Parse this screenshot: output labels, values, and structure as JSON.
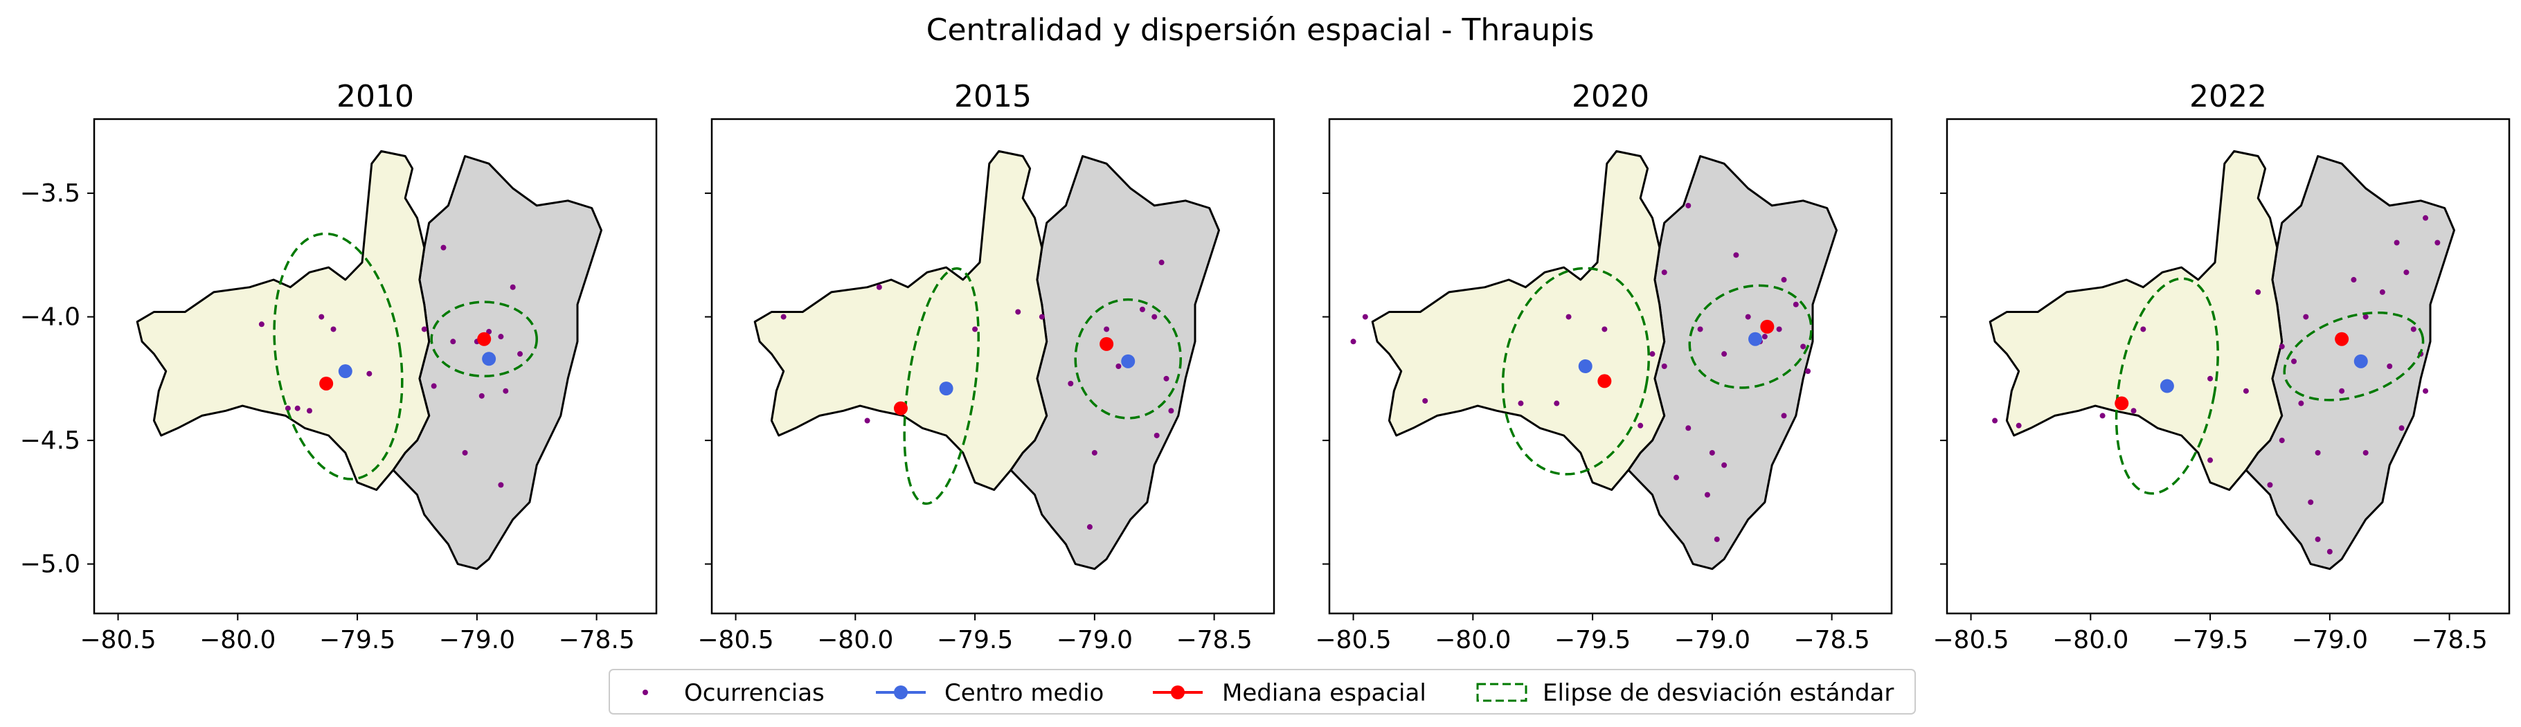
{
  "figure": {
    "suptitle": "Centralidad y dispersión espacial - Thraupis"
  },
  "legend": {
    "items": [
      {
        "key": "ocurrencias",
        "label": "Ocurrencias"
      },
      {
        "key": "centro",
        "label": "Centro medio"
      },
      {
        "key": "mediana",
        "label": "Mediana espacial"
      },
      {
        "key": "elipse",
        "label": "Elipse de desviación estándar"
      }
    ]
  },
  "colors": {
    "occurrence": "#800080",
    "mean_center": "#4169e1",
    "median": "#ff0000",
    "ellipse": "#007a00",
    "region_left": "#f5f5dc",
    "region_right": "#d3d3d3"
  },
  "chart_data": [
    {
      "type": "scatter",
      "title": "2010",
      "xlim": [
        -80.6,
        -78.25
      ],
      "ylim": [
        -5.2,
        -3.2
      ],
      "xticks": [
        -80.5,
        -80.0,
        -79.5,
        -79.0,
        -78.5
      ],
      "yticks": [
        -3.5,
        -4.0,
        -4.5,
        -5.0
      ],
      "mean_center": [
        -79.55,
        -4.22
      ],
      "median_center": [
        -79.63,
        -4.27
      ],
      "median_center_2": [
        -78.97,
        -4.09
      ],
      "mean_center_2": [
        -78.95,
        -4.17
      ],
      "ellipses": [
        {
          "center": [
            -79.58,
            -4.16
          ],
          "rx": 0.26,
          "ry": 0.5,
          "angle": -8
        },
        {
          "center": [
            -78.97,
            -4.09
          ],
          "rx": 0.22,
          "ry": 0.15,
          "angle": 0
        }
      ],
      "occurrences": [
        [
          -79.75,
          -4.37
        ],
        [
          -79.7,
          -4.38
        ],
        [
          -79.79,
          -4.37
        ],
        [
          -79.6,
          -4.05
        ],
        [
          -79.45,
          -4.23
        ],
        [
          -79.22,
          -4.05
        ],
        [
          -79.18,
          -4.28
        ],
        [
          -79.14,
          -3.72
        ],
        [
          -79.0,
          -4.1
        ],
        [
          -78.95,
          -4.06
        ],
        [
          -78.98,
          -4.32
        ],
        [
          -79.05,
          -4.55
        ],
        [
          -78.9,
          -4.08
        ],
        [
          -78.88,
          -4.3
        ],
        [
          -78.85,
          -3.88
        ],
        [
          -78.82,
          -4.15
        ],
        [
          -78.9,
          -4.68
        ],
        [
          -79.1,
          -4.1
        ],
        [
          -79.65,
          -4.0
        ],
        [
          -79.9,
          -4.03
        ]
      ]
    },
    {
      "type": "scatter",
      "title": "2015",
      "xlim": [
        -80.6,
        -78.25
      ],
      "ylim": [
        -5.2,
        -3.2
      ],
      "xticks": [
        -80.5,
        -80.0,
        -79.5,
        -79.0,
        -78.5
      ],
      "yticks": [
        -3.5,
        -4.0,
        -4.5,
        -5.0
      ],
      "mean_center": [
        -79.62,
        -4.29
      ],
      "median_center": [
        -79.81,
        -4.37
      ],
      "median_center_2": [
        -78.95,
        -4.11
      ],
      "mean_center_2": [
        -78.86,
        -4.18
      ],
      "ellipses": [
        {
          "center": [
            -79.64,
            -4.28
          ],
          "rx": 0.14,
          "ry": 0.48,
          "angle": 8
        },
        {
          "center": [
            -78.86,
            -4.17
          ],
          "rx": 0.22,
          "ry": 0.24,
          "angle": 0
        }
      ],
      "occurrences": [
        [
          -79.9,
          -3.88
        ],
        [
          -79.82,
          -4.36
        ],
        [
          -79.5,
          -4.05
        ],
        [
          -79.32,
          -3.98
        ],
        [
          -79.22,
          -4.0
        ],
        [
          -79.1,
          -4.27
        ],
        [
          -78.95,
          -4.05
        ],
        [
          -78.8,
          -3.97
        ],
        [
          -78.72,
          -3.78
        ],
        [
          -78.75,
          -4.0
        ],
        [
          -78.7,
          -4.25
        ],
        [
          -78.68,
          -4.38
        ],
        [
          -78.74,
          -4.48
        ],
        [
          -78.9,
          -4.2
        ],
        [
          -79.0,
          -4.55
        ],
        [
          -79.02,
          -4.85
        ],
        [
          -80.3,
          -4.0
        ],
        [
          -79.95,
          -4.42
        ]
      ]
    },
    {
      "type": "scatter",
      "title": "2020",
      "xlim": [
        -80.6,
        -78.25
      ],
      "ylim": [
        -5.2,
        -3.2
      ],
      "xticks": [
        -80.5,
        -80.0,
        -79.5,
        -79.0,
        -78.5
      ],
      "yticks": [
        -3.5,
        -4.0,
        -4.5,
        -5.0
      ],
      "mean_center": [
        -79.53,
        -4.2
      ],
      "median_center": [
        -79.45,
        -4.26
      ],
      "median_center_2": [
        -78.77,
        -4.04
      ],
      "mean_center_2": [
        -78.82,
        -4.09
      ],
      "ellipses": [
        {
          "center": [
            -79.57,
            -4.22
          ],
          "rx": 0.3,
          "ry": 0.42,
          "angle": 10
        },
        {
          "center": [
            -78.84,
            -4.08
          ],
          "rx": 0.26,
          "ry": 0.2,
          "angle": -20
        }
      ],
      "occurrences": [
        [
          -80.5,
          -4.1
        ],
        [
          -80.45,
          -4.0
        ],
        [
          -80.2,
          -4.34
        ],
        [
          -79.8,
          -4.35
        ],
        [
          -79.65,
          -4.35
        ],
        [
          -79.6,
          -4.0
        ],
        [
          -79.45,
          -4.05
        ],
        [
          -79.3,
          -4.44
        ],
        [
          -79.2,
          -3.82
        ],
        [
          -79.2,
          -4.2
        ],
        [
          -79.1,
          -3.55
        ],
        [
          -79.05,
          -4.05
        ],
        [
          -79.0,
          -4.55
        ],
        [
          -78.95,
          -4.6
        ],
        [
          -79.02,
          -4.72
        ],
        [
          -78.98,
          -4.9
        ],
        [
          -79.15,
          -4.65
        ],
        [
          -79.1,
          -4.45
        ],
        [
          -78.9,
          -3.75
        ],
        [
          -78.85,
          -4.0
        ],
        [
          -78.78,
          -4.08
        ],
        [
          -78.7,
          -3.85
        ],
        [
          -78.72,
          -4.05
        ],
        [
          -78.65,
          -3.95
        ],
        [
          -78.62,
          -4.12
        ],
        [
          -78.7,
          -4.4
        ],
        [
          -78.6,
          -4.22
        ],
        [
          -78.8,
          -4.1
        ],
        [
          -78.95,
          -4.15
        ],
        [
          -79.25,
          -4.15
        ]
      ]
    },
    {
      "type": "scatter",
      "title": "2022",
      "xlim": [
        -80.6,
        -78.25
      ],
      "ylim": [
        -5.2,
        -3.2
      ],
      "xticks": [
        -80.5,
        -80.0,
        -79.5,
        -79.0,
        -78.5
      ],
      "yticks": [
        -3.5,
        -4.0,
        -4.5,
        -5.0
      ],
      "mean_center": [
        -79.68,
        -4.28
      ],
      "median_center": [
        -79.87,
        -4.35
      ],
      "median_center_2": [
        -78.95,
        -4.09
      ],
      "mean_center_2": [
        -78.87,
        -4.18
      ],
      "ellipses": [
        {
          "center": [
            -79.68,
            -4.28
          ],
          "rx": 0.2,
          "ry": 0.44,
          "angle": 10
        },
        {
          "center": [
            -78.9,
            -4.16
          ],
          "rx": 0.3,
          "ry": 0.16,
          "angle": -18
        }
      ],
      "occurrences": [
        [
          -80.4,
          -4.42
        ],
        [
          -80.3,
          -4.44
        ],
        [
          -79.95,
          -4.4
        ],
        [
          -79.82,
          -4.38
        ],
        [
          -79.78,
          -4.05
        ],
        [
          -79.5,
          -4.25
        ],
        [
          -79.5,
          -4.58
        ],
        [
          -79.35,
          -4.3
        ],
        [
          -79.2,
          -4.12
        ],
        [
          -79.15,
          -4.18
        ],
        [
          -79.12,
          -4.35
        ],
        [
          -79.05,
          -4.55
        ],
        [
          -79.08,
          -4.75
        ],
        [
          -79.05,
          -4.9
        ],
        [
          -79.0,
          -4.95
        ],
        [
          -78.9,
          -3.85
        ],
        [
          -78.85,
          -4.0
        ],
        [
          -78.78,
          -3.9
        ],
        [
          -78.72,
          -3.7
        ],
        [
          -78.68,
          -3.82
        ],
        [
          -78.65,
          -4.05
        ],
        [
          -78.62,
          -4.15
        ],
        [
          -78.6,
          -4.3
        ],
        [
          -78.6,
          -3.6
        ],
        [
          -78.55,
          -3.7
        ],
        [
          -78.7,
          -4.45
        ],
        [
          -78.85,
          -4.55
        ],
        [
          -78.95,
          -4.3
        ],
        [
          -78.75,
          -4.2
        ],
        [
          -79.1,
          -4.0
        ],
        [
          -79.2,
          -4.5
        ],
        [
          -79.25,
          -4.68
        ],
        [
          -79.3,
          -3.9
        ]
      ]
    }
  ]
}
